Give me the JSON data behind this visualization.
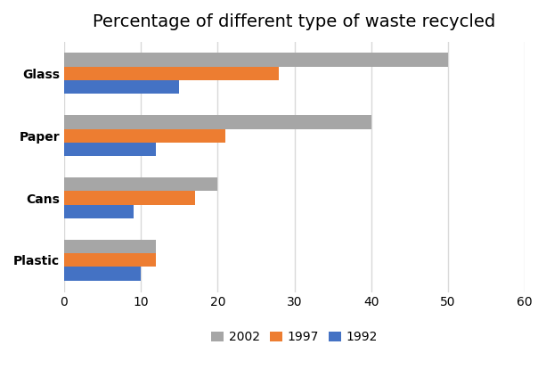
{
  "title": "Percentage of different type of waste recycled",
  "categories": [
    "Glass",
    "Paper",
    "Cans",
    "Plastic"
  ],
  "series": [
    {
      "label": "2002",
      "color": "#a6a6a6",
      "values": [
        50,
        40,
        20,
        12
      ]
    },
    {
      "label": "1997",
      "color": "#ed7d31",
      "values": [
        28,
        21,
        17,
        12
      ]
    },
    {
      "label": "1992",
      "color": "#4472c4",
      "values": [
        15,
        12,
        9,
        10
      ]
    }
  ],
  "xlim": [
    0,
    60
  ],
  "xticks": [
    0,
    10,
    20,
    30,
    40,
    50,
    60
  ],
  "bar_height": 0.22,
  "background_color": "#ffffff",
  "grid_color": "#d9d9d9",
  "title_fontsize": 14,
  "tick_fontsize": 10,
  "legend_fontsize": 10
}
